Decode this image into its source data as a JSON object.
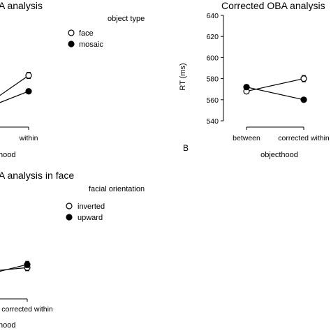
{
  "chart_data": [
    {
      "id": "top-left",
      "type": "line",
      "title": "A analysis",
      "xlabel": "hood",
      "ylabel": "",
      "categories": [
        "",
        "within"
      ],
      "legend": {
        "title": "object type",
        "placement": "top-right"
      },
      "series": [
        {
          "name": "face",
          "marker": "open",
          "values": [
            560,
            583
          ],
          "err": [
            3,
            3
          ]
        },
        {
          "name": "mosaic",
          "marker": "filled",
          "values": [
            555,
            568
          ],
          "err": [
            2,
            2
          ]
        }
      ],
      "ylim": [
        540,
        640
      ],
      "grid": false
    },
    {
      "id": "top-right",
      "type": "line",
      "title": "Corrected OBA analysis",
      "xlabel": "objecthood",
      "ylabel": "RT (ms)",
      "categories": [
        "between",
        "corrected within"
      ],
      "yticks": [
        540,
        560,
        580,
        600,
        620,
        640
      ],
      "ylim": [
        540,
        640
      ],
      "panel_letter": "B",
      "series": [
        {
          "name": "face",
          "marker": "open",
          "values": [
            568,
            580
          ],
          "err": [
            2,
            3
          ]
        },
        {
          "name": "mosaic",
          "marker": "filled",
          "values": [
            572,
            560
          ],
          "err": [
            2,
            2
          ]
        }
      ],
      "grid": false
    },
    {
      "id": "bottom-left",
      "type": "line",
      "title": "A analysis in face",
      "xlabel": "hood",
      "ylabel": "",
      "categories": [
        "",
        "corrected within"
      ],
      "legend": {
        "title": "facial orientation",
        "placement": "top-right"
      },
      "series": [
        {
          "name": "inverted",
          "marker": "open",
          "values": [
            560,
            563
          ],
          "err": [
            2,
            3
          ]
        },
        {
          "name": "upward",
          "marker": "filled",
          "values": [
            558,
            566
          ],
          "err": [
            2,
            3
          ]
        }
      ],
      "ylim": [
        540,
        640
      ],
      "grid": false
    }
  ]
}
